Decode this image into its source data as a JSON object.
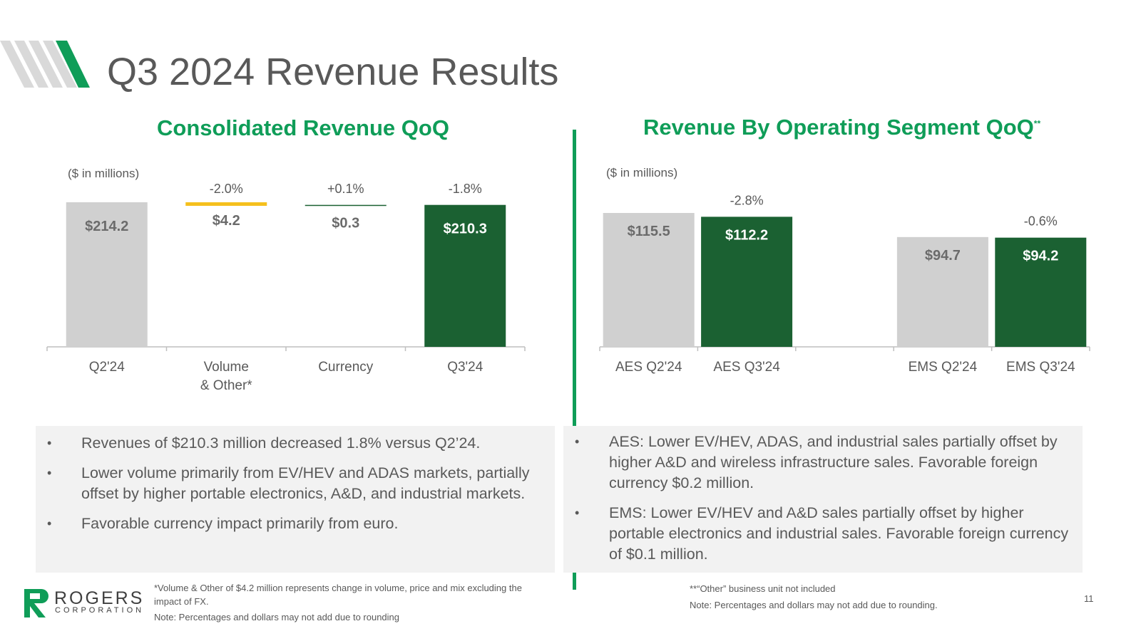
{
  "title": "Q3 2024 Revenue Results",
  "colors": {
    "accent": "#0f9d58",
    "dark_green": "#1b6132",
    "gray_bar": "#d0d0d0",
    "yellow": "#f5c01d",
    "text": "#595959"
  },
  "left": {
    "title": "Consolidated Revenue QoQ",
    "units": "($ in millions)",
    "bullets": [
      "Revenues of $210.3 million decreased 1.8% versus Q2’24.",
      "Lower volume primarily from EV/HEV and ADAS markets, partially offset by higher portable electronics, A&D, and industrial markets.",
      "Favorable currency impact primarily from euro."
    ],
    "footnote_1": "*Volume & Other of $4.2 million represents change in volume, price and mix excluding the impact of FX.",
    "footnote_2": "Note: Percentages and dollars may not add due to rounding"
  },
  "right": {
    "title": "Revenue By Operating Segment QoQ",
    "title_mark": "**",
    "units": "($ in millions)",
    "bullets": [
      "AES: Lower EV/HEV, ADAS, and industrial sales partially offset by higher A&D and wireless infrastructure sales. Favorable foreign currency $0.2 million.",
      "EMS: Lower EV/HEV and A&D sales partially offset by higher portable electronics and industrial sales. Favorable foreign currency of $0.1 million."
    ],
    "footnote_1": "**“Other” business unit not included",
    "footnote_2": "Note: Percentages and dollars may not add due to rounding."
  },
  "logo": {
    "name": "ROGERS",
    "sub": "CORPORATION"
  },
  "page_number": "11",
  "chart_data": [
    {
      "type": "bar",
      "subtype": "waterfall",
      "title": "Consolidated Revenue QoQ",
      "ylabel": "($ in millions)",
      "categories": [
        "Q2'24",
        "Volume & Other*",
        "Currency",
        "Q3'24"
      ],
      "category_lines": [
        [
          "Q2'24"
        ],
        [
          "Volume",
          "& Other*"
        ],
        [
          "Currency"
        ],
        [
          "Q3'24"
        ]
      ],
      "values": [
        214.2,
        -4.2,
        0.3,
        210.3
      ],
      "value_labels": [
        "$214.2",
        "$4.2",
        "$0.3",
        "$210.3"
      ],
      "pct_labels": [
        "",
        "-2.0%",
        "+0.1%",
        "-1.8%"
      ],
      "bar_colors": [
        "#d0d0d0",
        "#f5c01d",
        "#1b6132",
        "#1b6132"
      ],
      "ylim": [
        0,
        220
      ]
    },
    {
      "type": "bar",
      "title": "Revenue By Operating Segment QoQ",
      "ylabel": "($ in millions)",
      "categories": [
        "AES Q2'24",
        "AES Q3'24",
        "",
        "EMS Q2'24",
        "EMS Q3'24"
      ],
      "values": [
        115.5,
        112.2,
        null,
        94.7,
        94.2
      ],
      "value_labels": [
        "$115.5",
        "$112.2",
        "",
        "$94.7",
        "$94.2"
      ],
      "pct_labels": [
        "",
        "-2.8%",
        "",
        "",
        "-0.6%"
      ],
      "bar_colors": [
        "#d0d0d0",
        "#1b6132",
        "",
        "#d0d0d0",
        "#1b6132"
      ],
      "ylim": [
        0,
        120
      ]
    }
  ]
}
